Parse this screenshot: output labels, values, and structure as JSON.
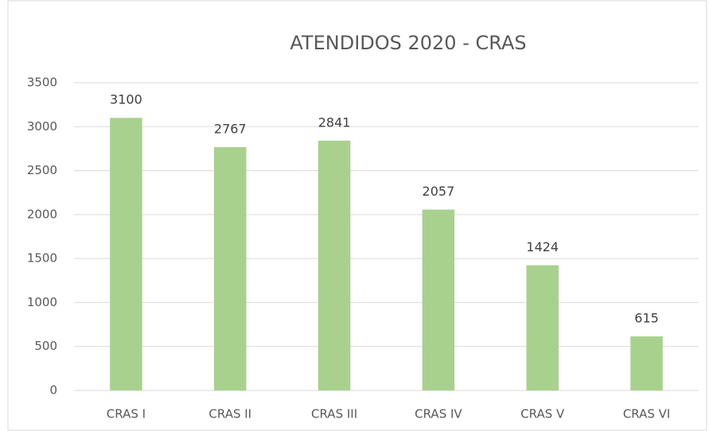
{
  "chart_data": {
    "type": "bar",
    "title": "ATENDIDOS 2020 - CRAS",
    "categories": [
      "CRAS I",
      "CRAS II",
      "CRAS III",
      "CRAS IV",
      "CRAS V",
      "CRAS VI"
    ],
    "values": [
      3100,
      2767,
      2841,
      2057,
      1424,
      615
    ],
    "color": "#a9d18e",
    "ylim": [
      0,
      3500
    ],
    "yticks": [
      0,
      500,
      1000,
      1500,
      2000,
      2500,
      3000,
      3500
    ],
    "grid": true
  }
}
